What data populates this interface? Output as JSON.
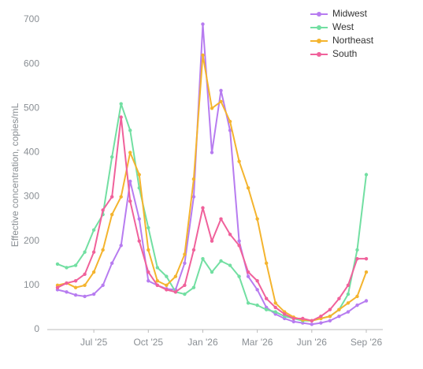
{
  "chart_data": {
    "type": "line",
    "y_label": "Effective concentration, copies/mL",
    "categories": [
      null,
      null,
      null,
      null,
      "Jul '25",
      null,
      null,
      null,
      null,
      null,
      "Oct '25",
      null,
      null,
      null,
      null,
      null,
      "Jan '26",
      null,
      null,
      null,
      null,
      null,
      "Mar '26",
      null,
      null,
      null,
      null,
      null,
      "Jun '26",
      null,
      null,
      null,
      null,
      null,
      "Sep '26"
    ],
    "series": [
      {
        "name": "Midwest",
        "color": "#b77cf0",
        "values": [
          90,
          85,
          78,
          75,
          80,
          100,
          150,
          190,
          335,
          250,
          110,
          100,
          92,
          90,
          150,
          300,
          690,
          400,
          540,
          450,
          200,
          120,
          90,
          50,
          35,
          25,
          18,
          15,
          12,
          15,
          20,
          30,
          40,
          55,
          65
        ]
      },
      {
        "name": "West",
        "color": "#72dfa2",
        "values": [
          148,
          140,
          145,
          175,
          225,
          260,
          390,
          510,
          450,
          320,
          230,
          140,
          120,
          85,
          80,
          95,
          160,
          130,
          155,
          145,
          120,
          60,
          55,
          45,
          40,
          30,
          25,
          20,
          20,
          25,
          30,
          45,
          80,
          180,
          350
        ]
      },
      {
        "name": "Northeast",
        "color": "#f4b42e",
        "values": [
          100,
          105,
          95,
          100,
          130,
          180,
          260,
          300,
          400,
          350,
          180,
          110,
          100,
          120,
          170,
          340,
          620,
          500,
          515,
          470,
          380,
          320,
          250,
          150,
          60,
          40,
          28,
          22,
          20,
          25,
          30,
          45,
          60,
          75,
          130
        ]
      },
      {
        "name": "South",
        "color": "#f0619b",
        "values": [
          95,
          105,
          110,
          125,
          175,
          270,
          300,
          480,
          290,
          200,
          130,
          100,
          90,
          85,
          100,
          180,
          275,
          200,
          250,
          215,
          190,
          130,
          110,
          70,
          50,
          35,
          25,
          25,
          20,
          30,
          45,
          70,
          100,
          160,
          160
        ]
      }
    ],
    "ylim": [
      0,
      700
    ],
    "yticks": [
      0,
      100,
      200,
      300,
      400,
      500,
      600,
      700
    ],
    "grid": false,
    "legend": "top-right"
  }
}
